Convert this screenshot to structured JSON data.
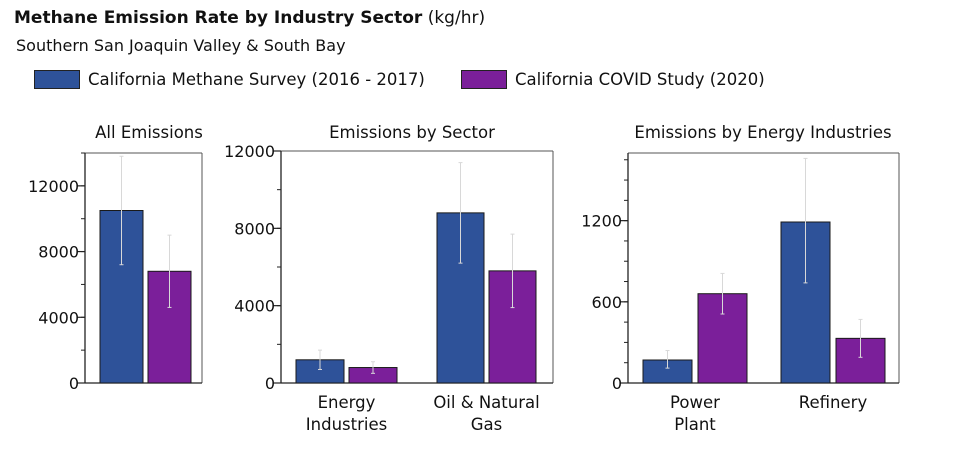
{
  "title": {
    "bold": "Methane Emission Rate by Industry Sector",
    "unit": "(kg/hr)"
  },
  "subtitle": "Southern San Joaquin Valley & South Bay",
  "legend": [
    {
      "label": "California Methane Survey (2016 - 2017)",
      "color": "#2e5299"
    },
    {
      "label": "California COVID Study (2020)",
      "color": "#7b1f9a"
    }
  ],
  "colors": {
    "series1": "#2e5299",
    "series2": "#7b1f9a",
    "error_bar": "#d8d8d8",
    "axis": "#222222"
  },
  "chart_data": [
    {
      "type": "bar",
      "title": "All Emissions",
      "categories": [
        ""
      ],
      "series": [
        {
          "name": "California Methane Survey (2016 - 2017)",
          "values": [
            10500
          ],
          "error_low": [
            7200
          ],
          "error_high": [
            13800
          ]
        },
        {
          "name": "California COVID Study (2020)",
          "values": [
            6800
          ],
          "error_low": [
            4600
          ],
          "error_high": [
            9000
          ]
        }
      ],
      "ylim": [
        0,
        14000
      ],
      "yticks": [
        0,
        4000,
        8000,
        12000
      ],
      "ytick_labels": [
        "0",
        "4000",
        "8000",
        "12000"
      ],
      "minor_step": 2000,
      "xlabel": "",
      "ylabel": "kg/hr"
    },
    {
      "type": "bar",
      "title": "Emissions by Sector",
      "categories": [
        [
          "Energy",
          "Industries"
        ],
        [
          "Oil & Natural",
          "Gas"
        ]
      ],
      "series": [
        {
          "name": "California Methane Survey (2016 - 2017)",
          "values": [
            1200,
            8800
          ],
          "error_low": [
            700,
            6200
          ],
          "error_high": [
            1700,
            11400
          ]
        },
        {
          "name": "California COVID Study (2020)",
          "values": [
            800,
            5800
          ],
          "error_low": [
            500,
            3900
          ],
          "error_high": [
            1100,
            7700
          ]
        }
      ],
      "ylim": [
        0,
        12000
      ],
      "yticks": [
        0,
        4000,
        8000,
        12000
      ],
      "ytick_labels": [
        "0",
        "4000",
        "8000",
        "12000"
      ],
      "minor_step": 2000,
      "xlabel": "",
      "ylabel": "kg/hr"
    },
    {
      "type": "bar",
      "title": "Emissions by Energy Industries",
      "categories": [
        [
          "Power",
          "Plant"
        ],
        [
          "Refinery"
        ]
      ],
      "series": [
        {
          "name": "California Methane Survey (2016 - 2017)",
          "values": [
            170,
            1190
          ],
          "error_low": [
            110,
            740
          ],
          "error_high": [
            240,
            1660
          ]
        },
        {
          "name": "California COVID Study (2020)",
          "values": [
            660,
            330
          ],
          "error_low": [
            510,
            190
          ],
          "error_high": [
            810,
            470
          ]
        }
      ],
      "ylim": [
        0,
        1700
      ],
      "yticks": [
        0,
        600,
        1200
      ],
      "ytick_labels": [
        "0",
        "600",
        "1200"
      ],
      "minor_step": 150,
      "xlabel": "",
      "ylabel": "kg/hr"
    }
  ]
}
